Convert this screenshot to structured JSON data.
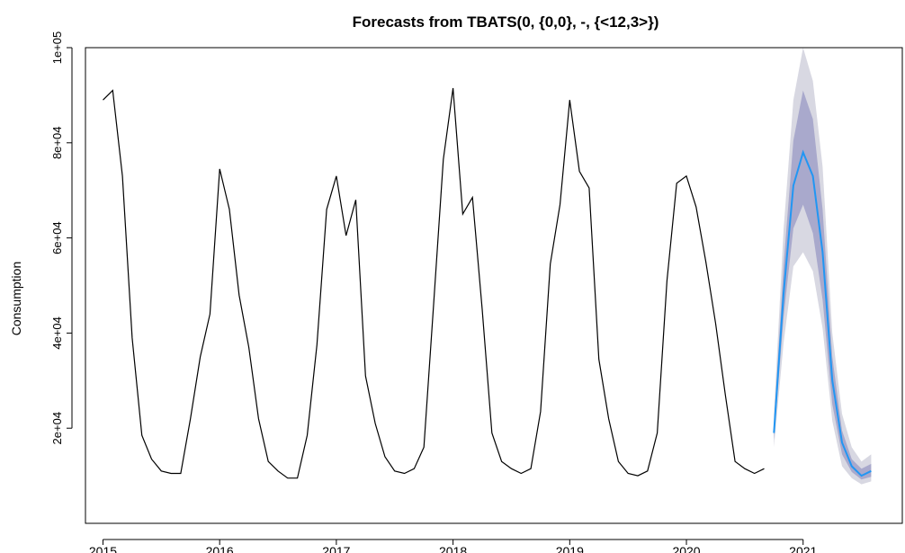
{
  "chart_data": {
    "type": "line",
    "title": "Forecasts from TBATS(0, {0,0}, -, {<12,3>})",
    "xlabel": "",
    "ylabel": "Consumption",
    "xlim": [
      2014.85,
      2021.85
    ],
    "ylim": [
      0,
      100000
    ],
    "x_ticks": [
      2015,
      2016,
      2017,
      2018,
      2019,
      2020,
      2021
    ],
    "x_tick_labels": [
      "2015",
      "2016",
      "2017",
      "2018",
      "2019",
      "2020",
      "2021"
    ],
    "y_ticks": [
      20000,
      40000,
      60000,
      80000,
      100000
    ],
    "y_tick_labels": [
      "2e+04",
      "4e+04",
      "6e+04",
      "8e+04",
      "1e+05"
    ],
    "colors": {
      "history": "#000000",
      "forecast": "#2196F3",
      "band80": "#A9A9CC",
      "band95": "#D8D8E2"
    },
    "history": {
      "start": 2015,
      "frequency": 12,
      "values": [
        89000,
        91000,
        73000,
        39000,
        18500,
        13500,
        11000,
        10500,
        10500,
        22000,
        35000,
        44000,
        74500,
        66000,
        48000,
        37000,
        22000,
        13000,
        11000,
        9500,
        9500,
        18500,
        37500,
        66000,
        73000,
        60500,
        68000,
        31000,
        21000,
        14000,
        11000,
        10500,
        11500,
        16000,
        46000,
        76500,
        91500,
        65000,
        68500,
        45000,
        19000,
        13000,
        11500,
        10500,
        11500,
        23500,
        54500,
        67000,
        89000,
        74000,
        70500,
        34500,
        22000,
        13000,
        10500,
        10000,
        11000,
        19000,
        51000,
        71500,
        73000,
        66500,
        55000,
        42000,
        27000,
        13000,
        11500,
        10500,
        11500
      ]
    },
    "forecast": {
      "start": 2020.75,
      "frequency": 12,
      "mean": [
        19000,
        48500,
        71000,
        78000,
        73000,
        57000,
        30000,
        17000,
        12000,
        10000,
        11000
      ],
      "lo80": [
        17500,
        43500,
        62000,
        67000,
        61000,
        47000,
        25000,
        14500,
        10800,
        9200,
        9800
      ],
      "hi80": [
        21000,
        54500,
        80500,
        91000,
        85000,
        66000,
        35000,
        19500,
        13500,
        11500,
        12500
      ],
      "lo95": [
        16000,
        38000,
        54000,
        57000,
        53000,
        41000,
        21500,
        12000,
        9500,
        8200,
        8800
      ],
      "hi95": [
        23000,
        62000,
        89000,
        100000,
        93000,
        75000,
        40000,
        23000,
        16000,
        13000,
        14500
      ]
    }
  }
}
